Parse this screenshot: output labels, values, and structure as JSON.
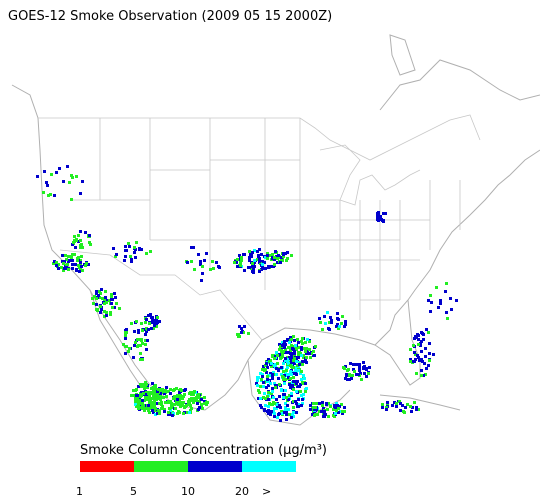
{
  "header": {
    "title": "GOES-12 Smoke Observation (2009 05 15  2000Z)"
  },
  "legend": {
    "title": "Smoke Column Concentration (μg/m³)",
    "colors": [
      "#ff0000",
      "#22ee22",
      "#0000cc",
      "#00ffff"
    ],
    "ticks": [
      "1",
      "5",
      "10",
      "20",
      ">"
    ]
  }
}
